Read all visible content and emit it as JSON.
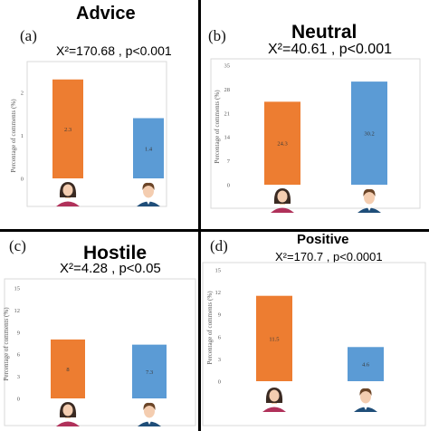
{
  "chart_data": [
    {
      "type": "bar",
      "panel_label": "(a)",
      "title": "Advice",
      "subtitle": "X²=170.68 , p<0.001",
      "ylabel": "Percentage of comments (%)",
      "yticks": [
        "2",
        "1",
        "0"
      ],
      "ylim": [
        0,
        3
      ],
      "categories": [
        "female",
        "male"
      ],
      "values": [
        2.3,
        1.4
      ],
      "data_labels": [
        "2.3",
        "1.4"
      ],
      "colors": [
        "#ed7d31",
        "#5b9bd5"
      ],
      "grid": false
    },
    {
      "type": "bar",
      "panel_label": "(b)",
      "title": "Neutral",
      "subtitle": "X²=40.61 , p<0.001",
      "ylabel": "Percentage of comments (%)",
      "yticks": [
        "35",
        "28",
        "21",
        "14",
        "7",
        "0"
      ],
      "ylim": [
        0,
        35
      ],
      "categories": [
        "female",
        "male"
      ],
      "values": [
        24.3,
        30.2
      ],
      "data_labels": [
        "24.3",
        "30.2"
      ],
      "colors": [
        "#ed7d31",
        "#5b9bd5"
      ],
      "grid": false
    },
    {
      "type": "bar",
      "panel_label": "(c)",
      "title": "Hostile",
      "subtitle": "X²=4.28 , p<0.05",
      "ylabel": "Percentage of comments (%)",
      "yticks": [
        "15",
        "12",
        "9",
        "6",
        "3",
        "0"
      ],
      "ylim": [
        0,
        15
      ],
      "categories": [
        "female",
        "male"
      ],
      "values": [
        8,
        7.3
      ],
      "data_labels": [
        "8",
        "7.3"
      ],
      "colors": [
        "#ed7d31",
        "#5b9bd5"
      ],
      "grid": false
    },
    {
      "type": "bar",
      "panel_label": "(d)",
      "title": "Positive",
      "subtitle": "X²=170.7 , p<0.0001",
      "ylabel": "Percentage of comments (%)",
      "yticks": [
        "15",
        "12",
        "9",
        "6",
        "3",
        "0"
      ],
      "ylim": [
        0,
        15
      ],
      "categories": [
        "female",
        "male"
      ],
      "values": [
        11.5,
        4.6
      ],
      "data_labels": [
        "11.5",
        "4.6"
      ],
      "colors": [
        "#ed7d31",
        "#5b9bd5"
      ],
      "grid": false
    }
  ],
  "icons": {
    "female": "woman-avatar-icon",
    "male": "man-avatar-icon"
  }
}
